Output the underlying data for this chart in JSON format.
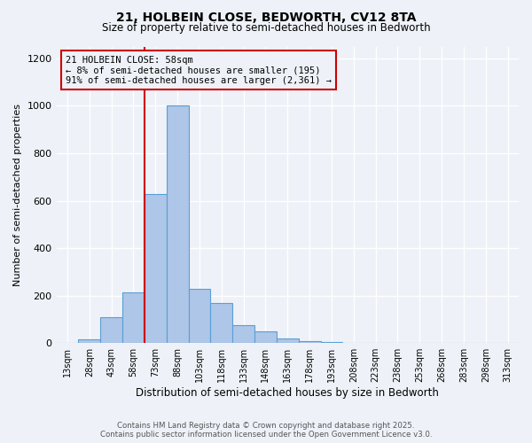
{
  "title_line1": "21, HOLBEIN CLOSE, BEDWORTH, CV12 8TA",
  "title_line2": "Size of property relative to semi-detached houses in Bedworth",
  "xlabel": "Distribution of semi-detached houses by size in Bedworth",
  "ylabel": "Number of semi-detached properties",
  "footer_line1": "Contains HM Land Registry data © Crown copyright and database right 2025.",
  "footer_line2": "Contains public sector information licensed under the Open Government Licence v3.0.",
  "bar_labels": [
    "13sqm",
    "28sqm",
    "43sqm",
    "58sqm",
    "73sqm",
    "88sqm",
    "103sqm",
    "118sqm",
    "133sqm",
    "148sqm",
    "163sqm",
    "178sqm",
    "193sqm",
    "208sqm",
    "223sqm",
    "238sqm",
    "253sqm",
    "268sqm",
    "283sqm",
    "298sqm",
    "313sqm"
  ],
  "bar_values": [
    0,
    15,
    110,
    215,
    630,
    1000,
    230,
    170,
    75,
    50,
    20,
    10,
    5,
    2,
    1,
    1,
    0,
    0,
    0,
    0,
    0
  ],
  "bar_color": "#aec6e8",
  "bar_edge_color": "#5a9fd4",
  "property_label": "21 HOLBEIN CLOSE: 58sqm",
  "pct_smaller": 8,
  "count_smaller": 195,
  "pct_larger": 91,
  "count_larger": 2361,
  "red_line_color": "#cc0000",
  "annotation_box_color": "#cc0000",
  "red_line_idx": 3,
  "ylim": [
    0,
    1250
  ],
  "yticks": [
    0,
    200,
    400,
    600,
    800,
    1000,
    1200
  ],
  "background_color": "#eef2f8"
}
